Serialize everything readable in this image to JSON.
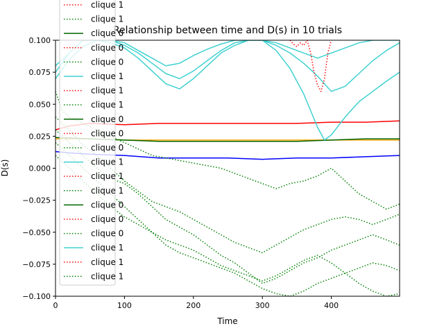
{
  "chart_data": {
    "type": "line",
    "title": "Relationship between time and D(s) in 10 trials",
    "xlabel": "Time",
    "ylabel": "D(s)",
    "xlim": [
      0,
      499
    ],
    "ylim": [
      -0.1,
      0.1
    ],
    "x_ticks": [
      0,
      100,
      200,
      300,
      400
    ],
    "x_tick_labels": [
      "0",
      "100",
      "200",
      "300",
      "400"
    ],
    "y_ticks": [
      -0.1,
      -0.075,
      -0.05,
      -0.025,
      0.0,
      0.025,
      0.05,
      0.075,
      0.1
    ],
    "y_tick_labels": [
      "−0.100",
      "−0.075",
      "−0.050",
      "−0.025",
      "0.000",
      "0.025",
      "0.050",
      "0.075",
      "0.100"
    ],
    "grid": false,
    "legend_position": "upper-left, overflowing above the axes",
    "legend": [
      {
        "label": "clique 1",
        "color": "#ff0000",
        "style": "dotted"
      },
      {
        "label": "clique 1",
        "color": "#008000",
        "style": "dotted"
      },
      {
        "label": "clique 0",
        "color": "#006400",
        "style": "solid"
      },
      {
        "label": "clique 0",
        "color": "#ff0000",
        "style": "dotted"
      },
      {
        "label": "clique 0",
        "color": "#008000",
        "style": "dotted"
      },
      {
        "label": "clique 1",
        "color": "#40d0d0",
        "style": "solid"
      },
      {
        "label": "clique 1",
        "color": "#ff0000",
        "style": "dotted"
      },
      {
        "label": "clique 1",
        "color": "#008000",
        "style": "dotted"
      },
      {
        "label": "clique 0",
        "color": "#006400",
        "style": "solid"
      },
      {
        "label": "clique 0",
        "color": "#ff0000",
        "style": "dotted"
      },
      {
        "label": "clique 0",
        "color": "#008000",
        "style": "dotted"
      },
      {
        "label": "clique 1",
        "color": "#40d0d0",
        "style": "solid"
      },
      {
        "label": "clique 1",
        "color": "#ff0000",
        "style": "dotted"
      },
      {
        "label": "clique 1",
        "color": "#008000",
        "style": "dotted"
      },
      {
        "label": "clique 0",
        "color": "#006400",
        "style": "solid"
      },
      {
        "label": "clique 0",
        "color": "#ff0000",
        "style": "dotted"
      },
      {
        "label": "clique 0",
        "color": "#008000",
        "style": "dotted"
      },
      {
        "label": "clique 1",
        "color": "#40d0d0",
        "style": "solid"
      },
      {
        "label": "clique 1",
        "color": "#ff0000",
        "style": "dotted"
      },
      {
        "label": "clique 1",
        "color": "#008000",
        "style": "dotted"
      }
    ],
    "series": [
      {
        "color": "#ff0000",
        "style": "solid",
        "x": [
          0,
          20,
          50,
          100,
          150,
          200,
          250,
          300,
          350,
          400,
          450,
          499
        ],
        "y": [
          0.03,
          0.033,
          0.035,
          0.034,
          0.035,
          0.035,
          0.035,
          0.035,
          0.035,
          0.036,
          0.036,
          0.037
        ]
      },
      {
        "color": "#ffa500",
        "style": "solid",
        "x": [
          0,
          50,
          100,
          150,
          200,
          250,
          300,
          350,
          400,
          450,
          499
        ],
        "y": [
          0.023,
          0.023,
          0.022,
          0.022,
          0.022,
          0.022,
          0.022,
          0.022,
          0.022,
          0.022,
          0.022
        ]
      },
      {
        "color": "#006400",
        "style": "solid",
        "x": [
          0,
          50,
          100,
          150,
          200,
          250,
          300,
          350,
          400,
          450,
          499
        ],
        "y": [
          0.024,
          0.023,
          0.022,
          0.021,
          0.021,
          0.021,
          0.021,
          0.021,
          0.022,
          0.023,
          0.023
        ]
      },
      {
        "color": "#0000ff",
        "style": "solid",
        "x": [
          0,
          20,
          50,
          100,
          150,
          200,
          250,
          300,
          350,
          400,
          450,
          499
        ],
        "y": [
          0.013,
          0.012,
          0.011,
          0.01,
          0.008,
          0.008,
          0.008,
          0.007,
          0.008,
          0.008,
          0.009,
          0.01
        ]
      },
      {
        "color": "#40d0d0",
        "style": "solid",
        "x": [
          0,
          20,
          40,
          60,
          80,
          100,
          120,
          140,
          160,
          180,
          200,
          220,
          240,
          260,
          280,
          300,
          320,
          340,
          360,
          380,
          400,
          420,
          440,
          460,
          480,
          499
        ],
        "y": [
          0.07,
          0.085,
          0.095,
          0.1,
          0.1,
          0.098,
          0.092,
          0.086,
          0.08,
          0.082,
          0.088,
          0.093,
          0.097,
          0.1,
          0.1,
          0.1,
          0.098,
          0.094,
          0.09,
          0.086,
          0.09,
          0.094,
          0.098,
          0.1,
          0.1,
          0.1
        ]
      },
      {
        "color": "#40d0d0",
        "style": "solid",
        "x": [
          0,
          20,
          40,
          60,
          80,
          100,
          120,
          140,
          160,
          180,
          200,
          220,
          240,
          260,
          280,
          300,
          320,
          340,
          360,
          380,
          400,
          420,
          440,
          460,
          480,
          499
        ],
        "y": [
          0.08,
          0.09,
          0.1,
          0.1,
          0.098,
          0.094,
          0.086,
          0.076,
          0.066,
          0.062,
          0.07,
          0.08,
          0.09,
          0.096,
          0.1,
          0.1,
          0.096,
          0.09,
          0.082,
          0.072,
          0.06,
          0.064,
          0.074,
          0.084,
          0.092,
          0.098
        ]
      },
      {
        "color": "#40d0d0",
        "style": "solid",
        "x": [
          0,
          20,
          40,
          60,
          80,
          100,
          120,
          140,
          160,
          180,
          200,
          220,
          240,
          260,
          280,
          300,
          320,
          340,
          360,
          380,
          390,
          400,
          420,
          440,
          460,
          480,
          499
        ],
        "y": [
          0.075,
          0.09,
          0.1,
          0.1,
          0.1,
          0.096,
          0.09,
          0.082,
          0.074,
          0.07,
          0.076,
          0.084,
          0.092,
          0.098,
          0.1,
          0.1,
          0.092,
          0.078,
          0.058,
          0.032,
          0.022,
          0.026,
          0.04,
          0.052,
          0.06,
          0.068,
          0.075
        ]
      },
      {
        "color": "#ff0000",
        "style": "dotted",
        "x": [
          340,
          345,
          350,
          355,
          360,
          365,
          370,
          375,
          380,
          385,
          390,
          395,
          400
        ],
        "y": [
          0.1,
          0.097,
          0.095,
          0.098,
          0.096,
          0.1,
          0.09,
          0.075,
          0.065,
          0.06,
          0.07,
          0.09,
          0.1
        ]
      },
      {
        "color": "#008000",
        "style": "dotted",
        "x": [
          0,
          10,
          20,
          40,
          60,
          80,
          100,
          120,
          140,
          160,
          180,
          200,
          220,
          240,
          260,
          280,
          300,
          320,
          340,
          360,
          380,
          400,
          420,
          440,
          460,
          480,
          499
        ],
        "y": [
          0.06,
          0.045,
          0.04,
          0.035,
          0.03,
          0.025,
          0.02,
          0.015,
          0.01,
          0.008,
          0.006,
          0.004,
          0.002,
          0.0,
          -0.004,
          -0.008,
          -0.012,
          -0.016,
          -0.012,
          -0.01,
          -0.006,
          0.0,
          -0.01,
          -0.02,
          -0.026,
          -0.032,
          -0.028
        ]
      },
      {
        "color": "#008000",
        "style": "dotted",
        "x": [
          0,
          20,
          40,
          60,
          80,
          100,
          120,
          140,
          160,
          180,
          200,
          220,
          240,
          260,
          280,
          300,
          320,
          340,
          360,
          380,
          400,
          420,
          440,
          460,
          480,
          499
        ],
        "y": [
          0.03,
          0.02,
          0.01,
          0.0,
          -0.008,
          -0.012,
          -0.02,
          -0.03,
          -0.04,
          -0.046,
          -0.052,
          -0.06,
          -0.068,
          -0.074,
          -0.082,
          -0.09,
          -0.086,
          -0.08,
          -0.074,
          -0.07,
          -0.064,
          -0.06,
          -0.056,
          -0.052,
          -0.056,
          -0.06
        ]
      },
      {
        "color": "#008000",
        "style": "dotted",
        "x": [
          0,
          20,
          40,
          60,
          80,
          100,
          120,
          140,
          160,
          180,
          200,
          220,
          240,
          260,
          280,
          300,
          320,
          340,
          360,
          380,
          400,
          420,
          440,
          460,
          480,
          499
        ],
        "y": [
          0.01,
          0.0,
          -0.01,
          -0.02,
          -0.03,
          -0.038,
          -0.044,
          -0.05,
          -0.056,
          -0.06,
          -0.064,
          -0.07,
          -0.076,
          -0.08,
          -0.084,
          -0.088,
          -0.084,
          -0.078,
          -0.072,
          -0.068,
          -0.074,
          -0.082,
          -0.09,
          -0.096,
          -0.1,
          -0.098
        ]
      },
      {
        "color": "#008000",
        "style": "dotted",
        "x": [
          0,
          20,
          40,
          60,
          80,
          100,
          120,
          140,
          160,
          180,
          200,
          220,
          240,
          260,
          280,
          300,
          320,
          340,
          360,
          380,
          400,
          420,
          440,
          460,
          480,
          499
        ],
        "y": [
          0.04,
          0.03,
          0.018,
          0.01,
          0.0,
          -0.01,
          -0.018,
          -0.026,
          -0.03,
          -0.034,
          -0.04,
          -0.046,
          -0.052,
          -0.058,
          -0.062,
          -0.066,
          -0.06,
          -0.054,
          -0.048,
          -0.044,
          -0.04,
          -0.038,
          -0.04,
          -0.044,
          -0.04,
          -0.036
        ]
      },
      {
        "color": "#008000",
        "style": "dotted",
        "x": [
          0,
          20,
          40,
          60,
          80,
          100,
          120,
          140,
          160,
          180,
          200,
          220,
          240,
          260,
          280,
          300,
          320,
          340,
          360,
          380,
          400,
          420,
          440,
          460,
          480,
          499
        ],
        "y": [
          0.02,
          0.01,
          0.0,
          -0.01,
          -0.02,
          -0.03,
          -0.04,
          -0.05,
          -0.06,
          -0.066,
          -0.07,
          -0.074,
          -0.078,
          -0.082,
          -0.088,
          -0.094,
          -0.098,
          -0.1,
          -0.096,
          -0.09,
          -0.086,
          -0.082,
          -0.078,
          -0.074,
          -0.076,
          -0.08
        ]
      }
    ]
  }
}
